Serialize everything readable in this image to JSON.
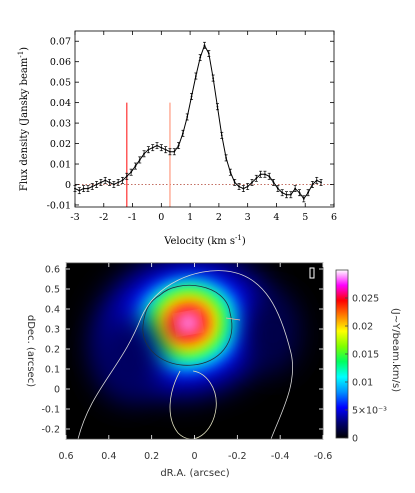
{
  "chart_data": [
    {
      "type": "line",
      "xlabel": "Velocity (km s",
      "xlabel_sup": "-1",
      "xlabel_close": ")",
      "ylabel": "Flux density (Jansky beam",
      "ylabel_sup": "-1",
      "ylabel_close": ")",
      "xlim": [
        -3,
        6
      ],
      "ylim": [
        -0.011,
        0.075
      ],
      "xticks": [
        -3,
        -2,
        -1,
        0,
        1,
        2,
        3,
        4,
        5,
        6
      ],
      "xtick_labels": [
        "-3",
        "-2",
        "-1",
        "0",
        "1",
        "2",
        "3",
        "4",
        "5",
        "6"
      ],
      "yticks": [
        -0.01,
        0,
        0.01,
        0.02,
        0.03,
        0.04,
        0.05,
        0.06,
        0.07
      ],
      "ytick_labels": [
        "-0.01",
        "0",
        "0.01",
        "0.02",
        "0.03",
        "0.04",
        "0.05",
        "0.06",
        "0.07"
      ],
      "zero_line": true,
      "markers": [
        {
          "x": -1.2,
          "y_top": 0.04,
          "color": "#ff3030"
        },
        {
          "x": 0.3,
          "y_top": 0.04,
          "color": "#ff9a80"
        }
      ],
      "series": [
        {
          "x": [
            -3.0,
            -2.85,
            -2.7,
            -2.55,
            -2.4,
            -2.25,
            -2.1,
            -1.95,
            -1.8,
            -1.65,
            -1.5,
            -1.35,
            -1.2,
            -1.05,
            -0.9,
            -0.75,
            -0.6,
            -0.45,
            -0.3,
            -0.15,
            0.0,
            0.15,
            0.3,
            0.45,
            0.6,
            0.75,
            0.9,
            1.05,
            1.2,
            1.35,
            1.5,
            1.65,
            1.8,
            1.95,
            2.1,
            2.25,
            2.4,
            2.55,
            2.7,
            2.85,
            3.0,
            3.15,
            3.3,
            3.45,
            3.6,
            3.75,
            3.9,
            4.05,
            4.2,
            4.35,
            4.5,
            4.65,
            4.8,
            4.95,
            5.1,
            5.25,
            5.4,
            5.55
          ],
          "y": [
            -0.002,
            -0.003,
            -0.002,
            -0.002,
            -0.001,
            0.0,
            0.001,
            0.002,
            0.001,
            0.0,
            0.001,
            0.002,
            0.004,
            0.006,
            0.009,
            0.012,
            0.015,
            0.017,
            0.018,
            0.019,
            0.018,
            0.017,
            0.016,
            0.016,
            0.019,
            0.025,
            0.033,
            0.043,
            0.053,
            0.062,
            0.068,
            0.064,
            0.052,
            0.038,
            0.024,
            0.013,
            0.006,
            0.001,
            -0.001,
            -0.002,
            -0.001,
            0.001,
            0.003,
            0.005,
            0.005,
            0.004,
            0.001,
            -0.002,
            -0.004,
            -0.005,
            -0.005,
            -0.002,
            -0.004,
            -0.007,
            -0.004,
            0.0,
            0.002,
            0.001
          ],
          "err": 0.0015
        }
      ]
    },
    {
      "type": "heatmap",
      "xlabel": "dR.A. (arcsec)",
      "ylabel": "dDec. (arcsec)",
      "xlim": [
        0.6,
        -0.6
      ],
      "ylim": [
        -0.25,
        0.63
      ],
      "xticks": [
        0.6,
        0.4,
        0.2,
        0,
        -0.2,
        -0.4,
        -0.6
      ],
      "xtick_labels": [
        "0.6",
        "0.4",
        "0.2",
        "0",
        "-0.2",
        "-0.4",
        "-0.6"
      ],
      "yticks": [
        -0.2,
        -0.1,
        0,
        0.1,
        0.2,
        0.3,
        0.4,
        0.5,
        0.6
      ],
      "ytick_labels": [
        "-0.2",
        "-0.1",
        "0",
        "0.1",
        "0.2",
        "0.3",
        "0.4",
        "0.5",
        "0.6"
      ],
      "peak": {
        "x": 0.03,
        "y": 0.33,
        "value": 0.03
      },
      "colorbar": {
        "label": "(J~Y/beam.km/s)",
        "range": [
          0,
          0.03
        ],
        "ticks": [
          0,
          0.005,
          0.01,
          0.015,
          0.02,
          0.025
        ],
        "tick_labels": [
          "0",
          "5×10⁻³",
          "0.01",
          "0.015",
          "0.02",
          "0.025"
        ],
        "colors": [
          "#000000",
          "#000070",
          "#0000ff",
          "#0090ff",
          "#00ffff",
          "#00ff60",
          "#80ff00",
          "#ffff00",
          "#ff8000",
          "#ff0000",
          "#ff00ff",
          "#ffffff"
        ]
      },
      "grid": false
    }
  ]
}
